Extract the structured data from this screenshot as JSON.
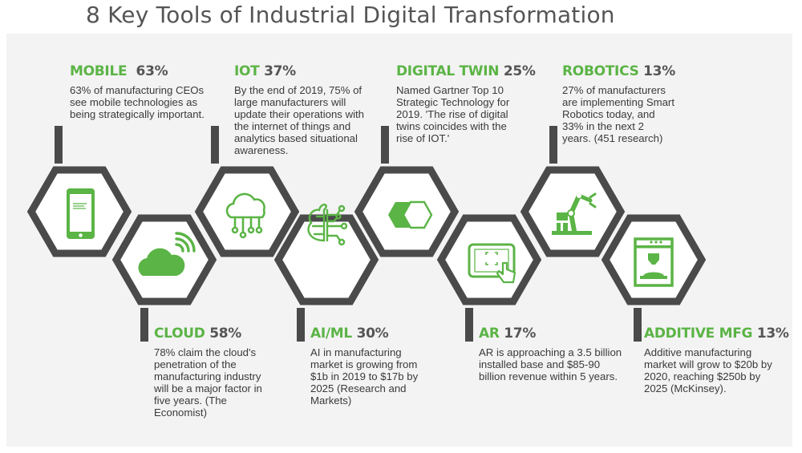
{
  "title": "8 Key Tools of Industrial Digital Transformation",
  "colors": {
    "accent": "#5bb446",
    "frame": "#4a4a4a",
    "panel": "#f3f3f3",
    "text": "#3a3a3a",
    "title": "#555555"
  },
  "tools": [
    {
      "name": "MOBILE",
      "percent": "63%",
      "icon": "smartphone-icon",
      "description": "63% of manufacturing CEOs see mobile technologies as being strategically important."
    },
    {
      "name": "CLOUD",
      "percent": "58%",
      "icon": "cloud-icon",
      "description": "78% claim the cloud's penetration of the manufacturing industry will be a major factor in five years. (The Economist)"
    },
    {
      "name": "IOT",
      "percent": "37%",
      "icon": "cloud-network-icon",
      "description": "By the end of 2019, 75% of large manufacturers will update their operations with the internet of things and analytics based situational awareness."
    },
    {
      "name": "AI/ML",
      "percent": "30%",
      "icon": "brain-circuit-icon",
      "description": "AI in manufacturing market is growing from $1b in 2019 to $17b by 2025 (Research and Markets)"
    },
    {
      "name": "DIGITAL TWIN",
      "percent": "25%",
      "icon": "twin-hexagon-icon",
      "description": "Named Gartner Top 10 Strategic Technology for 2019. 'The rise of digital twins coincides with the rise of IOT.'"
    },
    {
      "name": "AR",
      "percent": "17%",
      "icon": "tablet-touch-icon",
      "description": "AR is approaching a 3.5 billion installed base and $85-90 billion revenue within 5 years."
    },
    {
      "name": "ROBOTICS",
      "percent": "13%",
      "icon": "robot-arm-icon",
      "description": "27% of manufacturers are implementing Smart Robotics today, and 33% in the next 2 years. (451 research)"
    },
    {
      "name": "ADDITIVE MFG",
      "percent": "13%",
      "icon": "3d-printer-icon",
      "description": "Additive manufacturing market will grow to $20b by 2020, reaching $250b by 2025 (McKinsey)."
    }
  ]
}
